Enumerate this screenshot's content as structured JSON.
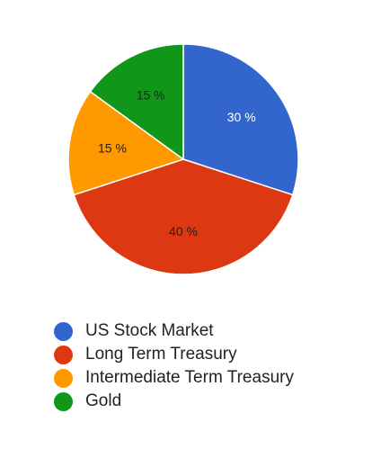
{
  "chart_data": {
    "type": "pie",
    "title": "",
    "categories": [
      "US Stock Market",
      "Long Term Treasury",
      "Intermediate Term Treasury",
      "Gold"
    ],
    "values": [
      30,
      40,
      15,
      15
    ],
    "value_labels": [
      "30 %",
      "40 %",
      "15 %",
      "15 %"
    ],
    "colors": [
      "#3366cc",
      "#dc3912",
      "#ff9900",
      "#109618"
    ],
    "label_colors": [
      "#ffffff",
      "#222222",
      "#222222",
      "#222222"
    ],
    "start_angle_deg": 0,
    "direction": "clockwise",
    "legend_position": "bottom"
  }
}
